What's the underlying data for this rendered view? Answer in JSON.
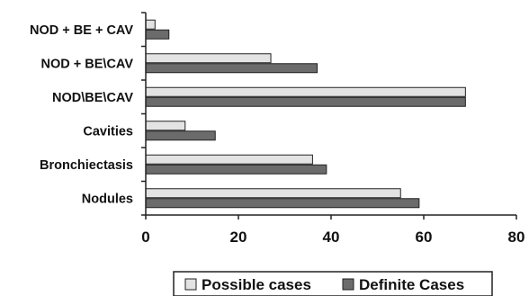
{
  "chart_data": {
    "type": "bar",
    "orientation": "horizontal",
    "categories": [
      "NOD + BE + CAV",
      "NOD + BE\\CAV",
      "NOD\\BE\\CAV",
      "Cavities",
      "Bronchiectasis",
      "Nodules"
    ],
    "series": [
      {
        "name": "Possible cases",
        "color": "#e3e3e3",
        "values": [
          2,
          27,
          69,
          8.5,
          36,
          55
        ]
      },
      {
        "name": "Definite Cases",
        "color": "#6b6b6b",
        "values": [
          5,
          37,
          69,
          15,
          39,
          59
        ]
      }
    ],
    "xticks": [
      "0",
      "20",
      "40",
      "60",
      "80"
    ],
    "xlim": [
      0,
      80
    ],
    "title": "",
    "xlabel": "",
    "ylabel": "",
    "grid": false,
    "legend": "bottom"
  }
}
